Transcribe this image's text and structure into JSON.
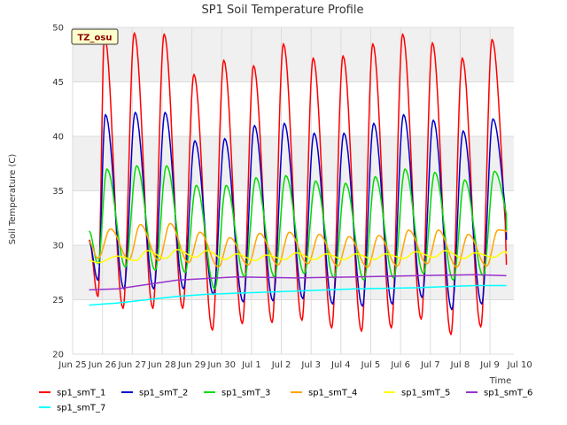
{
  "chart_data": {
    "type": "line",
    "title": "SP1 Soil Temperature Profile",
    "xlabel": "Time",
    "ylabel": "Soil Temperature (C)",
    "annotation": "TZ_osu",
    "xlim": [
      0,
      16
    ],
    "ylim": [
      20,
      50
    ],
    "x_ticks": [
      {
        "x": 0,
        "label": "Jun 25"
      },
      {
        "x": 1,
        "label": "Jun 26"
      },
      {
        "x": 2,
        "label": "Jun 27"
      },
      {
        "x": 3,
        "label": "Jun 28"
      },
      {
        "x": 4,
        "label": "Jun 29"
      },
      {
        "x": 5,
        "label": "Jun 30"
      },
      {
        "x": 6,
        "label": "Jul 1"
      },
      {
        "x": 7,
        "label": "Jul 2"
      },
      {
        "x": 8,
        "label": "Jul 3"
      },
      {
        "x": 9,
        "label": "Jul 4"
      },
      {
        "x": 10,
        "label": "Jul 5"
      },
      {
        "x": 11,
        "label": "Jul 6"
      },
      {
        "x": 12,
        "label": "Jul 7"
      },
      {
        "x": 13,
        "label": "Jul 8"
      },
      {
        "x": 14,
        "label": "Jul 9"
      },
      {
        "x": 15,
        "label": "Jul 10"
      }
    ],
    "y_ticks": [
      20,
      25,
      30,
      35,
      40,
      45,
      50
    ],
    "series": [
      {
        "name": "sp1_smT_1",
        "color": "#ff0000",
        "kind": "diurnal",
        "x_start": 0.55,
        "x_end": 14.55,
        "initial": 30.5,
        "lag": 0.52,
        "sharp": 4.0,
        "peaks": [
          49.2,
          49.5,
          49.4,
          45.7,
          47.0,
          46.5,
          48.5,
          47.2,
          47.4,
          48.5,
          49.4,
          48.6,
          47.2,
          48.9
        ],
        "troughs": [
          25.3,
          24.2,
          24.2,
          24.2,
          22.2,
          22.8,
          22.9,
          23.1,
          22.4,
          22.1,
          22.4,
          23.2,
          21.8,
          22.5,
          28.2
        ]
      },
      {
        "name": "sp1_smT_2",
        "color": "#0000cc",
        "kind": "diurnal",
        "x_start": 0.55,
        "x_end": 14.55,
        "initial": 30.3,
        "lag": 0.55,
        "sharp": 3.0,
        "peaks": [
          42.0,
          42.2,
          42.2,
          39.6,
          39.8,
          41.0,
          41.2,
          40.3,
          40.3,
          41.2,
          42.0,
          41.5,
          40.5,
          41.6
        ],
        "troughs": [
          26.8,
          26.0,
          26.0,
          26.0,
          25.5,
          24.8,
          24.9,
          25.1,
          24.6,
          24.4,
          24.6,
          25.2,
          24.1,
          24.6,
          30.5
        ]
      },
      {
        "name": "sp1_smT_3",
        "color": "#00dd00",
        "kind": "diurnal",
        "x_start": 0.55,
        "x_end": 14.55,
        "initial": 31.3,
        "lag": 0.6,
        "sharp": 2.0,
        "peaks": [
          37.0,
          37.3,
          37.3,
          35.5,
          35.5,
          36.2,
          36.4,
          35.9,
          35.7,
          36.3,
          37.0,
          36.7,
          36.0,
          36.8
        ],
        "troughs": [
          28.3,
          28.0,
          27.7,
          27.5,
          26.0,
          27.1,
          27.1,
          27.4,
          27.0,
          26.8,
          27.0,
          27.4,
          26.8,
          27.2,
          31.3
        ]
      },
      {
        "name": "sp1_smT_4",
        "color": "#ffa500",
        "kind": "diurnal",
        "x_start": 0.55,
        "x_end": 14.55,
        "initial": 30.3,
        "lag": 0.72,
        "sharp": 1.0,
        "peaks": [
          31.5,
          31.9,
          32.0,
          31.2,
          30.7,
          31.1,
          31.2,
          31.0,
          30.8,
          30.9,
          31.4,
          31.4,
          31.0,
          31.4
        ],
        "troughs": [
          28.8,
          28.7,
          28.6,
          28.4,
          28.0,
          28.2,
          28.2,
          28.3,
          28.1,
          28.0,
          28.1,
          28.3,
          28.0,
          28.1,
          31.2
        ]
      },
      {
        "name": "sp1_smT_5",
        "color": "#ffff00",
        "kind": "diurnal",
        "x_start": 0.55,
        "x_end": 14.55,
        "initial": 28.6,
        "lag": 0.95,
        "sharp": 1.0,
        "peaks": [
          29.0,
          29.5,
          29.6,
          29.5,
          29.2,
          29.1,
          29.3,
          29.2,
          29.2,
          29.2,
          29.4,
          29.5,
          29.3,
          29.4
        ],
        "troughs": [
          28.4,
          28.6,
          28.8,
          28.9,
          28.7,
          28.6,
          28.7,
          28.7,
          28.7,
          28.7,
          28.8,
          28.9,
          28.8,
          28.9,
          29.2
        ]
      },
      {
        "name": "sp1_smT_6",
        "color": "#9932cc",
        "kind": "linear",
        "points": [
          [
            0.55,
            25.9
          ],
          [
            1.5,
            26.0
          ],
          [
            3.5,
            26.8
          ],
          [
            5.5,
            27.1
          ],
          [
            7.5,
            27.0
          ],
          [
            9.5,
            27.1
          ],
          [
            11.5,
            27.2
          ],
          [
            13.5,
            27.3
          ],
          [
            14.55,
            27.2
          ]
        ]
      },
      {
        "name": "sp1_smT_7",
        "color": "#00ffff",
        "kind": "linear",
        "points": [
          [
            0.55,
            24.5
          ],
          [
            1.5,
            24.7
          ],
          [
            2.5,
            25.0
          ],
          [
            3.5,
            25.3
          ],
          [
            4.5,
            25.5
          ],
          [
            5.5,
            25.6
          ],
          [
            7.5,
            25.8
          ],
          [
            9.5,
            26.0
          ],
          [
            11.5,
            26.1
          ],
          [
            13.5,
            26.3
          ],
          [
            14.55,
            26.3
          ]
        ]
      }
    ]
  }
}
